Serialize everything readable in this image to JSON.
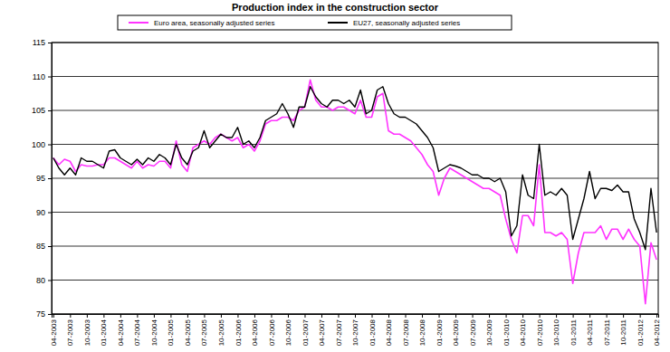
{
  "chart_data": {
    "type": "line",
    "title": "Production index in the construction sector",
    "categories": [
      "04-2003",
      null,
      null,
      "07-2003",
      null,
      null,
      "10-2003",
      null,
      null,
      "01-2004",
      null,
      null,
      "04-2004",
      null,
      null,
      "07-2004",
      null,
      null,
      "10-2004",
      null,
      null,
      "01-2005",
      null,
      null,
      "04-2005",
      null,
      null,
      "07-2005",
      null,
      null,
      "10-2005",
      null,
      null,
      "01-2006",
      null,
      null,
      "04-2006",
      null,
      null,
      "07-2006",
      null,
      null,
      "10-2006",
      null,
      null,
      "01-2007",
      null,
      null,
      "04-2007",
      null,
      null,
      "07-2007",
      null,
      null,
      "10-2007",
      null,
      null,
      "01-2008",
      null,
      null,
      "04-2008",
      null,
      null,
      "07-2008",
      null,
      null,
      "10-2008",
      null,
      null,
      "01-2009",
      null,
      null,
      "04-2009",
      null,
      null,
      "07-2009",
      null,
      null,
      "10-2009",
      null,
      null,
      "01-2010",
      null,
      null,
      "04-2010",
      null,
      null,
      "07-2010",
      null,
      null,
      "10-2010",
      null,
      null,
      "01-2011",
      null,
      null,
      "04-2011",
      null,
      null,
      "07-2011",
      null,
      null,
      "10-2011",
      null,
      null,
      "01-2012",
      null,
      null,
      "04-2012"
    ],
    "series": [
      {
        "name": "Euro area, seasonally adjusted series",
        "color": "#ff33ff",
        "values": [
          98,
          97,
          97.8,
          97.5,
          96,
          97,
          96.8,
          96.8,
          97,
          97,
          98,
          98,
          97.5,
          97,
          96.5,
          97.5,
          96.5,
          97,
          96.8,
          97.5,
          97.5,
          96.5,
          100.5,
          97,
          96,
          99.5,
          100,
          100.5,
          100,
          101,
          101.5,
          101,
          100.5,
          101,
          99.5,
          100,
          99,
          100.5,
          103,
          103.5,
          103.5,
          104,
          104,
          103.5,
          105,
          105.5,
          109.5,
          106.5,
          105.5,
          105.5,
          105,
          105.5,
          105.5,
          105,
          104.5,
          106.5,
          104,
          104,
          107,
          107.5,
          102,
          101.5,
          101.5,
          101,
          100.5,
          99.5,
          98.5,
          97,
          96,
          92.5,
          95,
          96.5,
          96,
          95.5,
          95,
          94.5,
          94,
          93.5,
          93.5,
          93,
          92.5,
          89,
          86,
          84,
          89.5,
          89.5,
          88,
          97,
          87,
          87,
          86.5,
          87,
          86,
          79.5,
          84,
          87,
          87,
          87,
          88,
          86,
          87.5,
          87.5,
          86,
          87.5,
          86,
          85,
          76.5,
          85.5,
          83
        ]
      },
      {
        "name": "EU27, seasonally adjusted series",
        "color": "#000000",
        "values": [
          98,
          96.5,
          95.5,
          96.5,
          95.5,
          98,
          97.5,
          97.5,
          97,
          96.5,
          99,
          99.2,
          98,
          97.5,
          97,
          97.8,
          97,
          98,
          97.5,
          98.5,
          98,
          97,
          100,
          98,
          97,
          99,
          99.5,
          102,
          99.5,
          100.5,
          101.5,
          101,
          101,
          102.5,
          100,
          100.5,
          99.5,
          101,
          103.5,
          104,
          104.5,
          106,
          104.5,
          102.5,
          105.5,
          105.5,
          108.5,
          107,
          106,
          105.5,
          106.5,
          106.5,
          106,
          106.5,
          105.5,
          108,
          104.5,
          105,
          108,
          108.5,
          106,
          104.5,
          104,
          104,
          103.5,
          103,
          102,
          101,
          99.5,
          96,
          96.5,
          97,
          96.8,
          96.5,
          96,
          95.5,
          95.5,
          95,
          95,
          94.5,
          95,
          93,
          86.5,
          88,
          95.5,
          92.5,
          92,
          100,
          92.5,
          93,
          92.5,
          93.5,
          92.5,
          86,
          89,
          92,
          96,
          92,
          93.5,
          93.5,
          93.2,
          94,
          93,
          93,
          89,
          87,
          84.5,
          93.5,
          87
        ]
      }
    ],
    "ylim": [
      75,
      115
    ],
    "yticks": [
      75,
      80,
      85,
      90,
      95,
      100,
      105,
      110,
      115
    ],
    "grid": true,
    "legend": "top"
  }
}
